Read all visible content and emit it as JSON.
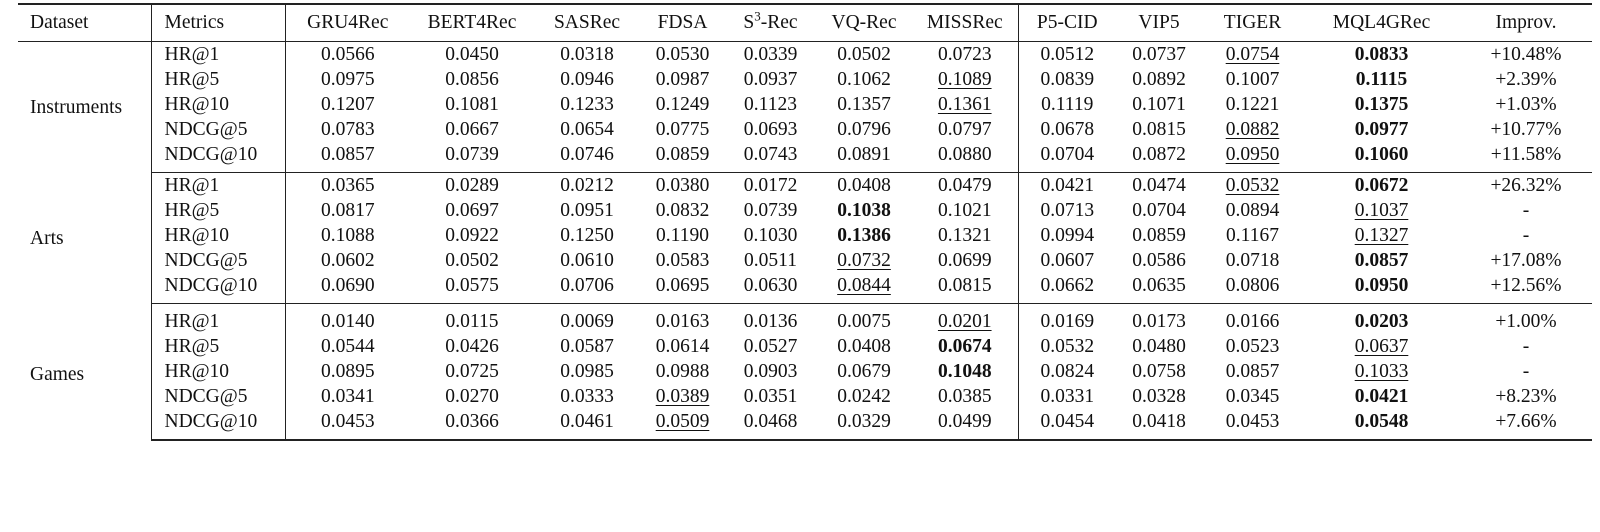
{
  "headers": {
    "dataset": "Dataset",
    "metrics": "Metrics",
    "gru4rec": "GRU4Rec",
    "bert4rec": "BERT4Rec",
    "sasrec": "SASRec",
    "fdsa": "FDSA",
    "s3rec_prefix": "S",
    "s3rec_sup": "3",
    "s3rec_suffix": "-Rec",
    "vqrec": "VQ-Rec",
    "missrec": "MISSRec",
    "p5cid": "P5-CID",
    "vip5": "VIP5",
    "tiger": "TIGER",
    "mql4grec": "MQL4GRec",
    "improv": "Improv."
  },
  "groups": [
    {
      "name": "Instruments",
      "rows": [
        {
          "metric": "HR@1",
          "v": [
            "0.0566",
            "0.0450",
            "0.0318",
            "0.0530",
            "0.0339",
            "0.0502",
            "0.0723",
            "0.0512",
            "0.0737",
            "0.0754",
            "0.0833"
          ],
          "improv": "+10.48%"
        },
        {
          "metric": "HR@5",
          "v": [
            "0.0975",
            "0.0856",
            "0.0946",
            "0.0987",
            "0.0937",
            "0.1062",
            "0.1089",
            "0.0839",
            "0.0892",
            "0.1007",
            "0.1115"
          ],
          "improv": "+2.39%"
        },
        {
          "metric": "HR@10",
          "v": [
            "0.1207",
            "0.1081",
            "0.1233",
            "0.1249",
            "0.1123",
            "0.1357",
            "0.1361",
            "0.1119",
            "0.1071",
            "0.1221",
            "0.1375"
          ],
          "improv": "+1.03%"
        },
        {
          "metric": "NDCG@5",
          "v": [
            "0.0783",
            "0.0667",
            "0.0654",
            "0.0775",
            "0.0693",
            "0.0796",
            "0.0797",
            "0.0678",
            "0.0815",
            "0.0882",
            "0.0977"
          ],
          "improv": "+10.77%"
        },
        {
          "metric": "NDCG@10",
          "v": [
            "0.0857",
            "0.0739",
            "0.0746",
            "0.0859",
            "0.0743",
            "0.0891",
            "0.0880",
            "0.0704",
            "0.0872",
            "0.0950",
            "0.1060"
          ],
          "improv": "+11.58%"
        }
      ]
    },
    {
      "name": "Arts",
      "rows": [
        {
          "metric": "HR@1",
          "v": [
            "0.0365",
            "0.0289",
            "0.0212",
            "0.0380",
            "0.0172",
            "0.0408",
            "0.0479",
            "0.0421",
            "0.0474",
            "0.0532",
            "0.0672"
          ],
          "improv": "+26.32%"
        },
        {
          "metric": "HR@5",
          "v": [
            "0.0817",
            "0.0697",
            "0.0951",
            "0.0832",
            "0.0739",
            "0.1038",
            "0.1021",
            "0.0713",
            "0.0704",
            "0.0894",
            "0.1037"
          ],
          "improv": "-"
        },
        {
          "metric": "HR@10",
          "v": [
            "0.1088",
            "0.0922",
            "0.1250",
            "0.1190",
            "0.1030",
            "0.1386",
            "0.1321",
            "0.0994",
            "0.0859",
            "0.1167",
            "0.1327"
          ],
          "improv": "-"
        },
        {
          "metric": "NDCG@5",
          "v": [
            "0.0602",
            "0.0502",
            "0.0610",
            "0.0583",
            "0.0511",
            "0.0732",
            "0.0699",
            "0.0607",
            "0.0586",
            "0.0718",
            "0.0857"
          ],
          "improv": "+17.08%"
        },
        {
          "metric": "NDCG@10",
          "v": [
            "0.0690",
            "0.0575",
            "0.0706",
            "0.0695",
            "0.0630",
            "0.0844",
            "0.0815",
            "0.0662",
            "0.0635",
            "0.0806",
            "0.0950"
          ],
          "improv": "+12.56%"
        }
      ]
    },
    {
      "name": "Games",
      "rows": [
        {
          "metric": "HR@1",
          "v": [
            "0.0140",
            "0.0115",
            "0.0069",
            "0.0163",
            "0.0136",
            "0.0075",
            "0.0201",
            "0.0169",
            "0.0173",
            "0.0166",
            "0.0203"
          ],
          "improv": "+1.00%"
        },
        {
          "metric": "HR@5",
          "v": [
            "0.0544",
            "0.0426",
            "0.0587",
            "0.0614",
            "0.0527",
            "0.0408",
            "0.0674",
            "0.0532",
            "0.0480",
            "0.0523",
            "0.0637"
          ],
          "improv": "-"
        },
        {
          "metric": "HR@10",
          "v": [
            "0.0895",
            "0.0725",
            "0.0985",
            "0.0988",
            "0.0903",
            "0.0679",
            "0.1048",
            "0.0824",
            "0.0758",
            "0.0857",
            "0.1033"
          ],
          "improv": "-"
        },
        {
          "metric": "NDCG@5",
          "v": [
            "0.0341",
            "0.0270",
            "0.0333",
            "0.0389",
            "0.0351",
            "0.0242",
            "0.0385",
            "0.0331",
            "0.0328",
            "0.0345",
            "0.0421"
          ],
          "improv": "+8.23%"
        },
        {
          "metric": "NDCG@10",
          "v": [
            "0.0453",
            "0.0366",
            "0.0461",
            "0.0509",
            "0.0468",
            "0.0329",
            "0.0499",
            "0.0454",
            "0.0418",
            "0.0453",
            "0.0548"
          ],
          "improv": "+7.66%"
        }
      ]
    }
  ]
}
